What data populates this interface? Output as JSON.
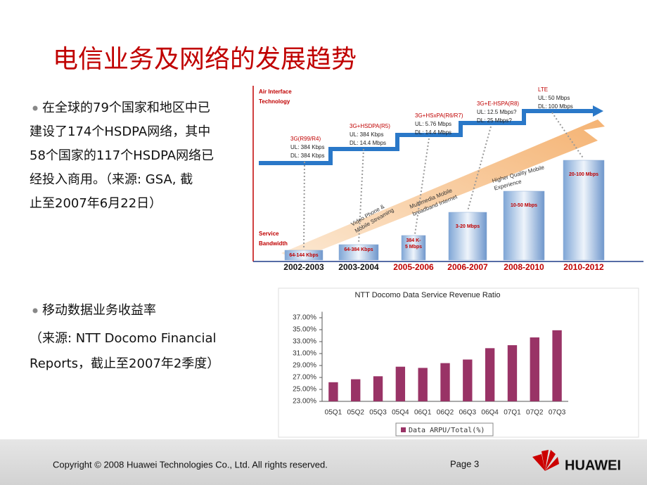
{
  "header": {
    "title": "电信业务及网络的发展趋势"
  },
  "bullets": [
    {
      "lines": [
        "在全球的79个国家和地区中已",
        "建设了174个HSDPA网络，其中",
        "58个国家的117个HSDPA网络已",
        "经投入商用。（来源: GSA, 截",
        "止至2007年6月22日）"
      ]
    },
    {
      "lines": [
        "移动数据业务收益率"
      ],
      "note": [
        "（来源: NTT Docomo Financial",
        "Reports，截止至2007年2季度）"
      ]
    }
  ],
  "diagram": {
    "tech_axis": [
      "Air Interface",
      "Technology"
    ],
    "bandwidth_axis": [
      "Service",
      "Bandwidth"
    ],
    "technologies": [
      {
        "name": "3G(R99/R4)",
        "ul": "UL: 384 Kbps",
        "dl": "DL: 384 Kbps"
      },
      {
        "name": "3G+HSDPA(R5)",
        "ul": "UL: 384 Kbps",
        "dl": "DL: 14.4 Mbps"
      },
      {
        "name": "3G+HSxPA(R6/R7)",
        "ul": "UL: 5.76 Mbps",
        "dl": "DL: 14.4 Mbps"
      },
      {
        "name": "3G+E-HSPA(R8)",
        "ul": "UL: 12.5 Mbps?",
        "dl": "DL: 25 Mbps?"
      },
      {
        "name": "LTE",
        "ul": "UL: 50 Mbps",
        "dl": "DL: 100 Mbps"
      }
    ],
    "periods": [
      {
        "years": "2002-2003",
        "bandwidth": [
          "64-144 Kbps"
        ]
      },
      {
        "years": "2003-2004",
        "bandwidth": [
          "64-384 Kbps"
        ]
      },
      {
        "years": "2005-2006",
        "bandwidth": [
          "384 K-",
          "5 Mbps"
        ]
      },
      {
        "years": "2006-2007",
        "bandwidth": [
          "3-20 Mbps"
        ]
      },
      {
        "years": "2008-2010",
        "bandwidth": [
          "10-50 Mbps"
        ]
      },
      {
        "years": "2010-2012",
        "bandwidth": [
          "20-100 Mbps"
        ]
      }
    ],
    "services": [
      [
        "Video Phone &",
        "Mobile Streaming"
      ],
      [
        "Multimedia Mobile",
        "broadband Internet"
      ],
      [
        "Higher Quality Mobile",
        "Experience"
      ]
    ]
  },
  "chart_data": {
    "type": "bar",
    "title": "NTT Docomo Data Service Revenue Ratio",
    "categories": [
      "05Q1",
      "05Q2",
      "05Q3",
      "05Q4",
      "06Q1",
      "06Q2",
      "06Q3",
      "06Q4",
      "07Q1",
      "07Q2",
      "07Q3"
    ],
    "series": [
      {
        "name": "Data ARPU/Total(%)",
        "color": "#993366",
        "values": [
          26.2,
          26.7,
          27.2,
          28.8,
          28.6,
          29.4,
          30.0,
          31.9,
          32.4,
          33.7,
          34.9
        ]
      }
    ],
    "ylim": [
      23,
      38
    ],
    "yticks": [
      {
        "value": 23,
        "label": "23.00%"
      },
      {
        "value": 25,
        "label": "25.00%"
      },
      {
        "value": 27,
        "label": "27.00%"
      },
      {
        "value": 29,
        "label": "29.00%"
      },
      {
        "value": 31,
        "label": "31.00%"
      },
      {
        "value": 33,
        "label": "33.00%"
      },
      {
        "value": 35,
        "label": "35.00%"
      },
      {
        "value": 37,
        "label": "37.00%"
      }
    ],
    "grid": false
  },
  "footer": {
    "copyright": "Copyright © 2008 Huawei Technologies Co., Ltd. All rights reserved.",
    "page": "Page 3",
    "brand": "HUAWEI"
  }
}
